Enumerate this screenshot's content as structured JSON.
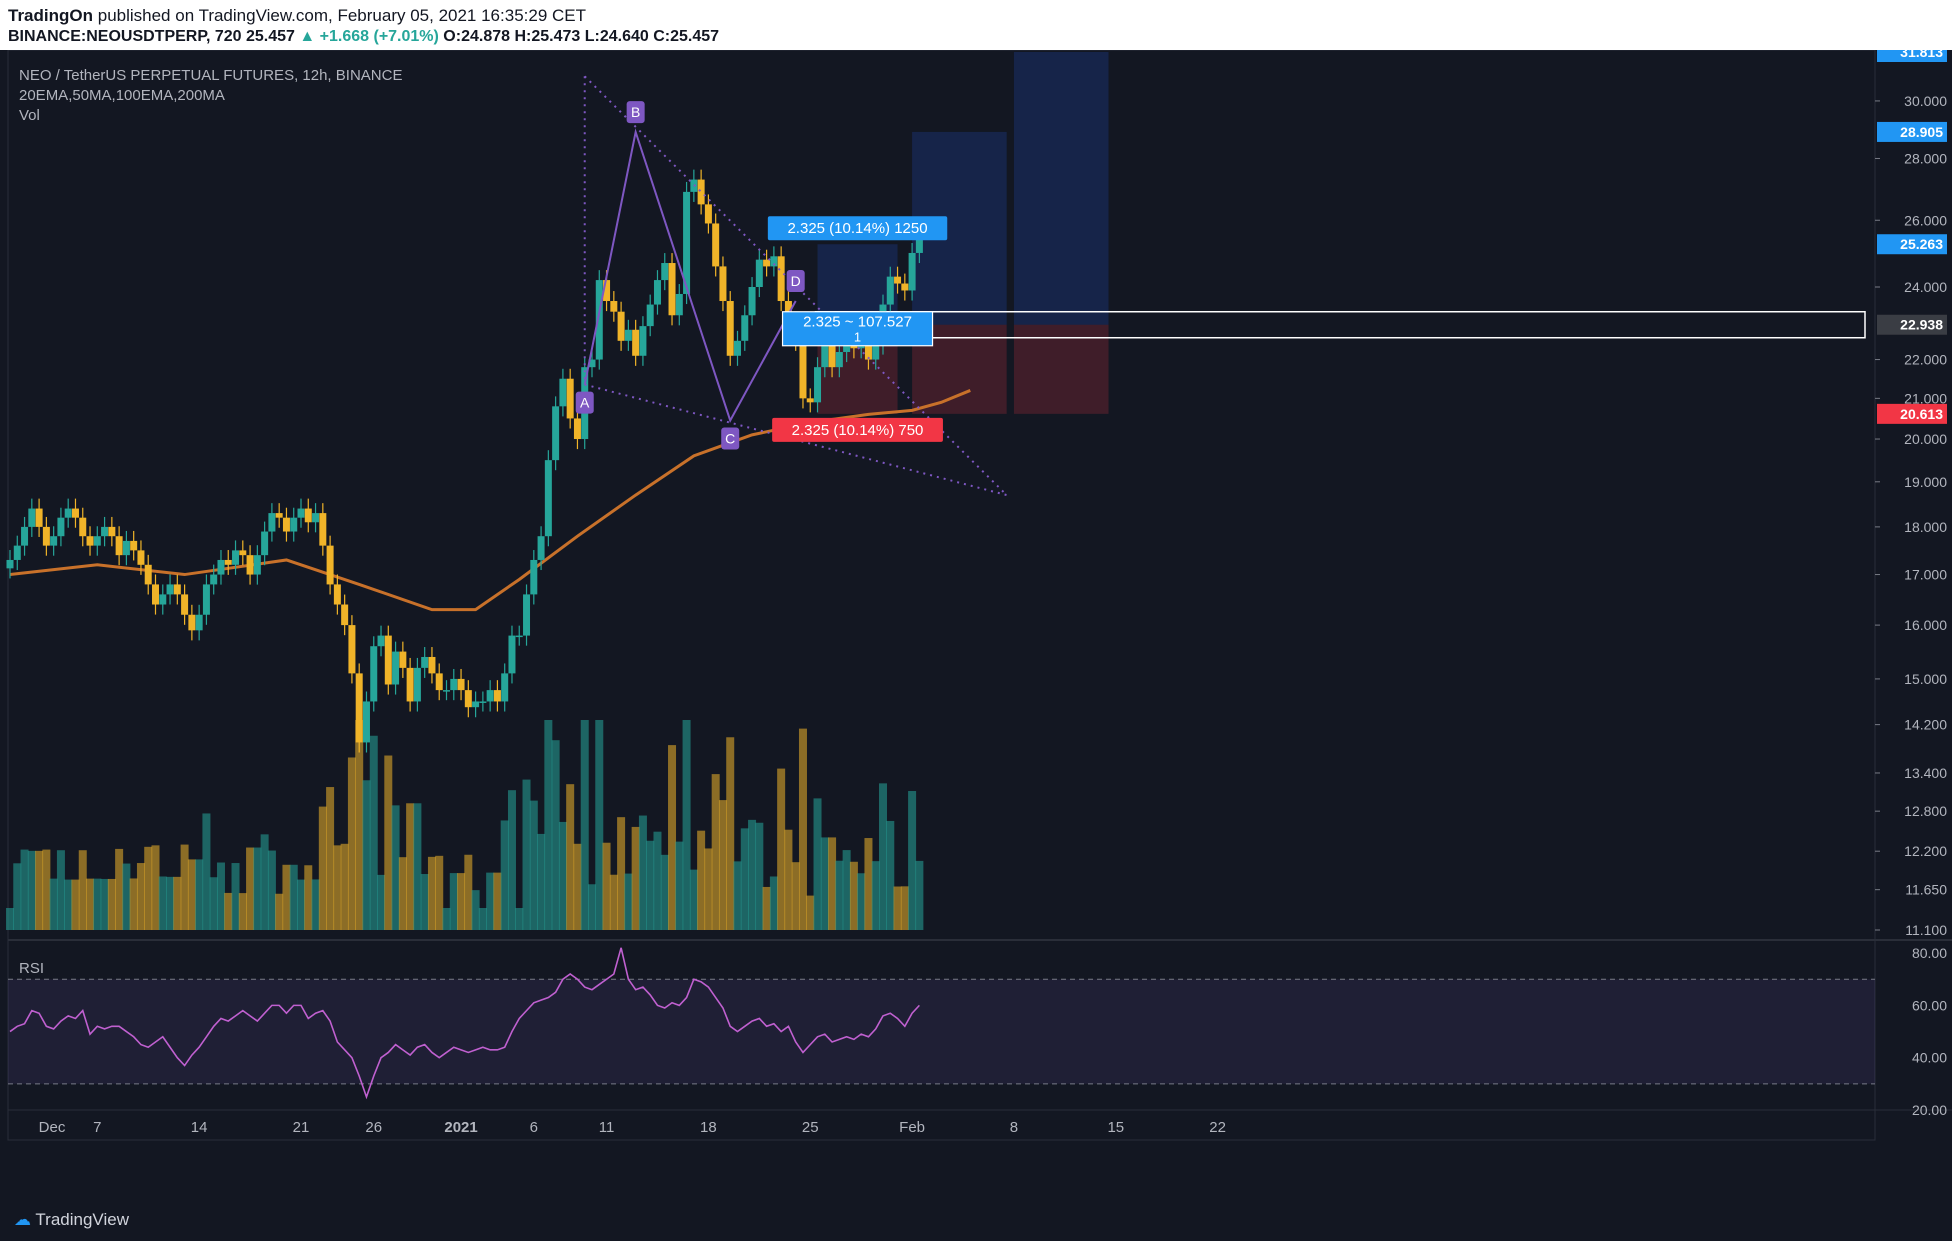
{
  "header": {
    "publisher": "TradingOn",
    "published_text": "published on TradingView.com, February 05, 2021 16:35:29 CET",
    "symbol_line_a": "BINANCE:NEOUSDTPERP, 720",
    "symbol_line_b": " 25.457 ",
    "symbol_change": "▲ +1.668 (+7.01%)",
    "ohlc": " O:24.878 H:25.473 L:24.640 C:25.457"
  },
  "legend": {
    "title": "NEO / TetherUS PERPETUAL FUTURES, 12h, BINANCE",
    "indicators": "20EMA,50MA,100EMA,200MA",
    "volume": "Vol",
    "rsi": "RSI"
  },
  "footer": {
    "brand": "TradingView"
  },
  "colors": {
    "background": "#131722",
    "bull": "#26a69a",
    "bear": "#f0b429",
    "ema": "#c8712a",
    "pattern": "#7e57c2",
    "rsi": "#c060d0",
    "target_label": "#2196f3",
    "stop_label": "#f23645",
    "current_label": "#3a3d44"
  },
  "chart_data": [
    {
      "type": "candlestick",
      "title": "NEO / TetherUS PERPETUAL FUTURES, 12h, BINANCE",
      "yscale": "log",
      "ylim": [
        11.1,
        31.813
      ],
      "y_ticks": [
        "30.000",
        "28.000",
        "26.000",
        "24.000",
        "22.000",
        "21.000",
        "20.000",
        "19.000",
        "18.000",
        "17.000",
        "16.000",
        "15.000",
        "14.200",
        "13.400",
        "12.800",
        "12.200",
        "11.650",
        "11.100"
      ],
      "x_ticks": [
        {
          "label": "Dec",
          "day": 0
        },
        {
          "label": "7",
          "day": 6
        },
        {
          "label": "14",
          "day": 13
        },
        {
          "label": "21",
          "day": 20
        },
        {
          "label": "26",
          "day": 25
        },
        {
          "label": "2021",
          "day": 31
        },
        {
          "label": "6",
          "day": 36
        },
        {
          "label": "11",
          "day": 41
        },
        {
          "label": "18",
          "day": 48
        },
        {
          "label": "25",
          "day": 55
        },
        {
          "label": "Feb",
          "day": 62
        },
        {
          "label": "8",
          "day": 69
        },
        {
          "label": "15",
          "day": 76
        },
        {
          "label": "22",
          "day": 83
        }
      ],
      "price_labels": [
        {
          "text": "31.813",
          "value": 31.813,
          "color": "#2196f3"
        },
        {
          "text": "28.905",
          "value": 28.905,
          "color": "#2196f3"
        },
        {
          "text": "25.263",
          "value": 25.263,
          "color": "#2196f3"
        },
        {
          "text": "22.938",
          "value": 22.938,
          "color": "#3a3d44"
        },
        {
          "text": "20.613",
          "value": 20.613,
          "color": "#f23645"
        }
      ],
      "close_series": [
        17.3,
        17.6,
        18.0,
        18.4,
        18.0,
        17.6,
        17.8,
        18.2,
        18.4,
        18.2,
        17.8,
        17.6,
        17.8,
        18.0,
        17.8,
        17.4,
        17.7,
        17.5,
        17.2,
        16.8,
        16.4,
        16.6,
        16.8,
        16.6,
        16.2,
        15.9,
        16.2,
        16.8,
        17.0,
        17.3,
        17.2,
        17.5,
        17.4,
        17.0,
        17.4,
        17.9,
        18.3,
        18.2,
        17.9,
        18.2,
        18.4,
        18.1,
        18.3,
        17.6,
        16.8,
        16.4,
        16.0,
        15.1,
        13.9,
        14.6,
        15.6,
        15.8,
        14.9,
        15.5,
        15.2,
        14.6,
        15.2,
        15.4,
        15.1,
        14.8,
        14.8,
        15.0,
        14.8,
        14.5,
        14.6,
        14.6,
        14.8,
        14.6,
        15.1,
        15.8,
        15.8,
        16.6,
        17.3,
        17.8,
        19.5,
        20.8,
        21.5,
        20.5,
        20.0,
        21.8,
        22.0,
        24.2,
        23.6,
        23.3,
        22.5,
        22.8,
        22.1,
        22.9,
        23.5,
        24.2,
        24.7,
        23.2,
        23.8,
        26.9,
        27.3,
        26.5,
        25.9,
        24.6,
        23.6,
        22.1,
        22.5,
        23.2,
        24.0,
        24.8,
        24.6,
        24.9,
        23.6,
        22.9,
        22.5,
        21.0,
        20.9,
        21.8,
        22.4,
        21.8,
        22.2,
        22.7,
        22.3,
        22.6,
        22.0,
        22.4,
        23.5,
        24.3,
        24.1,
        23.9,
        25.0,
        25.457
      ],
      "volume_range": [
        0,
        100
      ],
      "ma_series": {
        "name": "",
        "points": [
          [
            0,
            17.0
          ],
          [
            6,
            17.2
          ],
          [
            12,
            17.0
          ],
          [
            19,
            17.3
          ],
          [
            24,
            16.8
          ],
          [
            29,
            16.3
          ],
          [
            32,
            16.3
          ],
          [
            35,
            16.9
          ],
          [
            39,
            17.8
          ],
          [
            43,
            18.7
          ],
          [
            47,
            19.6
          ],
          [
            51,
            20.1
          ],
          [
            55,
            20.4
          ],
          [
            59,
            20.6
          ],
          [
            62,
            20.7
          ],
          [
            64,
            20.9
          ],
          [
            66,
            21.2
          ]
        ]
      },
      "pattern": {
        "points": [
          {
            "label": "A",
            "day": 39.5,
            "price": 21.35
          },
          {
            "label": "B",
            "day": 43,
            "price": 28.9
          },
          {
            "label": "C",
            "day": 49.5,
            "price": 20.45
          },
          {
            "label": "D",
            "day": 54,
            "price": 23.6
          }
        ]
      },
      "trendlines": [
        {
          "from": [
            39.5,
            30.9
          ],
          "to": [
            68.5,
            18.7
          ]
        },
        {
          "from": [
            39.5,
            21.35
          ],
          "to": [
            68.5,
            18.7
          ]
        }
      ],
      "positions": [
        {
          "entry": 22.938,
          "target": 25.263,
          "stop": 20.613,
          "top_label": "2.325 (10.14%) 1250",
          "bottom_label": "2.325 (10.14%) 750",
          "mid_label": "2.325 ~ 107.527",
          "mid_sub": "1",
          "from_day": 55.5,
          "to_day": 61
        },
        {
          "entry": 22.938,
          "target": 28.905,
          "stop": 20.613,
          "from_day": 62,
          "to_day": 68.5
        },
        {
          "entry": 22.938,
          "target": 31.813,
          "stop": 20.613,
          "from_day": 69,
          "to_day": 75.5
        }
      ]
    },
    {
      "type": "line",
      "title": "RSI",
      "ylim": [
        20,
        85
      ],
      "y_ticks": [
        "80.00",
        "60.00",
        "40.00",
        "20.00"
      ],
      "bands": [
        30,
        70
      ],
      "values": [
        50,
        52,
        53,
        58,
        57,
        52,
        51,
        54,
        56,
        55,
        58,
        49,
        52,
        51,
        52,
        52,
        50,
        48,
        45,
        44,
        46,
        48,
        44,
        40,
        37,
        41,
        44,
        48,
        52,
        55,
        54,
        56,
        58,
        56,
        54,
        57,
        60,
        60,
        57,
        60,
        60,
        55,
        57,
        58,
        54,
        46,
        43,
        40,
        33,
        25,
        33,
        40,
        42,
        45,
        43,
        41,
        44,
        45,
        42,
        40,
        42,
        44,
        43,
        42,
        43,
        44,
        43,
        43,
        44,
        50,
        55,
        58,
        61,
        62,
        63,
        65,
        70,
        72,
        70,
        67,
        66,
        68,
        70,
        72,
        82,
        70,
        66,
        67,
        64,
        60,
        59,
        61,
        60,
        63,
        70,
        69,
        67,
        63,
        59,
        52,
        50,
        52,
        54,
        55,
        52,
        53,
        50,
        52,
        46,
        42,
        45,
        48,
        49,
        46,
        47,
        48,
        47,
        49,
        48,
        51,
        56,
        57,
        55,
        52,
        57,
        60
      ]
    }
  ]
}
